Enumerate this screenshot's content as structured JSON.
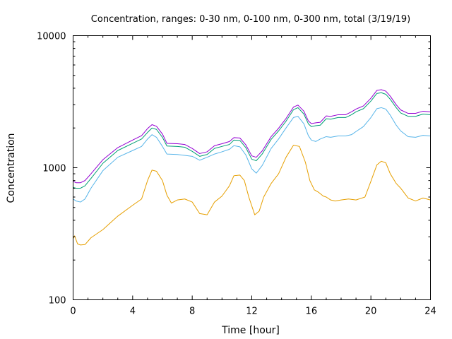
{
  "chart_data": {
    "type": "line",
    "title": "Concentration, ranges: 0-30 nm, 0-100 nm, 0-300 nm, total (3/19/19)",
    "xlabel": "Time [hour]",
    "ylabel": "Concentration",
    "xlim": [
      0,
      24
    ],
    "ylim": [
      100,
      10000
    ],
    "yscale": "log",
    "grid": false,
    "legend": "none",
    "x_ticks": [
      0,
      4,
      8,
      12,
      16,
      20,
      24
    ],
    "x_tick_labels": [
      "0",
      "4",
      "8",
      "12",
      "16",
      "20",
      "24"
    ],
    "y_ticks": [
      100,
      1000,
      10000
    ],
    "y_tick_labels": [
      "100",
      "1000",
      "10000"
    ],
    "series": [
      {
        "color": "#e69f00",
        "points": [
          [
            0,
            290
          ],
          [
            0.1,
            305
          ],
          [
            0.3,
            265
          ],
          [
            0.5,
            260
          ],
          [
            0.8,
            262
          ],
          [
            1.2,
            295
          ],
          [
            2,
            340
          ],
          [
            3,
            430
          ],
          [
            4,
            520
          ],
          [
            4.6,
            580
          ],
          [
            5,
            800
          ],
          [
            5.3,
            960
          ],
          [
            5.6,
            940
          ],
          [
            6,
            800
          ],
          [
            6.3,
            620
          ],
          [
            6.6,
            540
          ],
          [
            7,
            570
          ],
          [
            7.5,
            580
          ],
          [
            8,
            550
          ],
          [
            8.5,
            450
          ],
          [
            9,
            440
          ],
          [
            9.5,
            550
          ],
          [
            10,
            610
          ],
          [
            10.5,
            730
          ],
          [
            10.8,
            870
          ],
          [
            11.2,
            880
          ],
          [
            11.5,
            800
          ],
          [
            11.8,
            600
          ],
          [
            12.2,
            440
          ],
          [
            12.5,
            470
          ],
          [
            12.8,
            600
          ],
          [
            13.3,
            760
          ],
          [
            13.8,
            900
          ],
          [
            14.3,
            1200
          ],
          [
            14.8,
            1480
          ],
          [
            15.2,
            1450
          ],
          [
            15.6,
            1100
          ],
          [
            15.9,
            800
          ],
          [
            16.2,
            680
          ],
          [
            16.5,
            650
          ],
          [
            16.8,
            610
          ],
          [
            17,
            600
          ],
          [
            17.3,
            570
          ],
          [
            17.6,
            560
          ],
          [
            18,
            570
          ],
          [
            18.5,
            580
          ],
          [
            19,
            570
          ],
          [
            19.6,
            600
          ],
          [
            20,
            790
          ],
          [
            20.4,
            1050
          ],
          [
            20.7,
            1120
          ],
          [
            21,
            1090
          ],
          [
            21.3,
            900
          ],
          [
            21.7,
            760
          ],
          [
            22,
            700
          ],
          [
            22.5,
            590
          ],
          [
            23,
            560
          ],
          [
            23.5,
            590
          ],
          [
            24,
            570
          ]
        ]
      },
      {
        "color": "#56b4e9",
        "points": [
          [
            0,
            580
          ],
          [
            0.2,
            560
          ],
          [
            0.5,
            550
          ],
          [
            0.8,
            580
          ],
          [
            1.2,
            700
          ],
          [
            2,
            950
          ],
          [
            3,
            1200
          ],
          [
            4,
            1350
          ],
          [
            4.6,
            1450
          ],
          [
            5,
            1650
          ],
          [
            5.3,
            1780
          ],
          [
            5.6,
            1700
          ],
          [
            6,
            1450
          ],
          [
            6.3,
            1270
          ],
          [
            7,
            1260
          ],
          [
            7.5,
            1240
          ],
          [
            8,
            1220
          ],
          [
            8.5,
            1140
          ],
          [
            9,
            1200
          ],
          [
            9.5,
            1270
          ],
          [
            10,
            1320
          ],
          [
            10.5,
            1380
          ],
          [
            10.8,
            1470
          ],
          [
            11.2,
            1440
          ],
          [
            11.6,
            1250
          ],
          [
            12,
            980
          ],
          [
            12.3,
            910
          ],
          [
            12.7,
            1040
          ],
          [
            13.3,
            1400
          ],
          [
            13.8,
            1650
          ],
          [
            14.3,
            2000
          ],
          [
            14.8,
            2400
          ],
          [
            15.1,
            2450
          ],
          [
            15.5,
            2150
          ],
          [
            15.8,
            1750
          ],
          [
            16,
            1620
          ],
          [
            16.3,
            1580
          ],
          [
            16.6,
            1650
          ],
          [
            17,
            1720
          ],
          [
            17.3,
            1700
          ],
          [
            17.8,
            1740
          ],
          [
            18.3,
            1740
          ],
          [
            18.7,
            1780
          ],
          [
            19,
            1880
          ],
          [
            19.5,
            2050
          ],
          [
            20,
            2400
          ],
          [
            20.4,
            2800
          ],
          [
            20.7,
            2850
          ],
          [
            21,
            2780
          ],
          [
            21.3,
            2500
          ],
          [
            21.7,
            2100
          ],
          [
            22,
            1900
          ],
          [
            22.5,
            1720
          ],
          [
            23,
            1700
          ],
          [
            23.5,
            1760
          ],
          [
            24,
            1740
          ]
        ]
      },
      {
        "color": "#009e73",
        "points": [
          [
            0,
            710
          ],
          [
            0.2,
            700
          ],
          [
            0.5,
            700
          ],
          [
            0.8,
            730
          ],
          [
            1.2,
            830
          ],
          [
            2,
            1080
          ],
          [
            3,
            1350
          ],
          [
            4,
            1530
          ],
          [
            4.6,
            1650
          ],
          [
            5,
            1850
          ],
          [
            5.3,
            2000
          ],
          [
            5.6,
            1950
          ],
          [
            6,
            1700
          ],
          [
            6.3,
            1460
          ],
          [
            7,
            1450
          ],
          [
            7.5,
            1430
          ],
          [
            8,
            1330
          ],
          [
            8.5,
            1220
          ],
          [
            9,
            1260
          ],
          [
            9.5,
            1400
          ],
          [
            10,
            1450
          ],
          [
            10.5,
            1500
          ],
          [
            10.8,
            1620
          ],
          [
            11.2,
            1610
          ],
          [
            11.6,
            1420
          ],
          [
            12,
            1160
          ],
          [
            12.3,
            1130
          ],
          [
            12.7,
            1270
          ],
          [
            13.3,
            1640
          ],
          [
            13.8,
            1900
          ],
          [
            14.3,
            2250
          ],
          [
            14.8,
            2750
          ],
          [
            15.1,
            2850
          ],
          [
            15.5,
            2550
          ],
          [
            15.8,
            2150
          ],
          [
            16,
            2050
          ],
          [
            16.3,
            2080
          ],
          [
            16.6,
            2100
          ],
          [
            17,
            2350
          ],
          [
            17.3,
            2330
          ],
          [
            17.8,
            2400
          ],
          [
            18.3,
            2400
          ],
          [
            18.7,
            2520
          ],
          [
            19,
            2650
          ],
          [
            19.5,
            2800
          ],
          [
            20,
            3200
          ],
          [
            20.4,
            3650
          ],
          [
            20.7,
            3700
          ],
          [
            21,
            3600
          ],
          [
            21.3,
            3300
          ],
          [
            21.7,
            2850
          ],
          [
            22,
            2600
          ],
          [
            22.5,
            2450
          ],
          [
            23,
            2450
          ],
          [
            23.5,
            2550
          ],
          [
            24,
            2520
          ]
        ]
      },
      {
        "color": "#9400d3",
        "points": [
          [
            0,
            790
          ],
          [
            0.2,
            770
          ],
          [
            0.5,
            770
          ],
          [
            0.8,
            800
          ],
          [
            1.2,
            900
          ],
          [
            2,
            1150
          ],
          [
            3,
            1420
          ],
          [
            4,
            1620
          ],
          [
            4.6,
            1750
          ],
          [
            5,
            1980
          ],
          [
            5.3,
            2120
          ],
          [
            5.6,
            2060
          ],
          [
            6,
            1800
          ],
          [
            6.3,
            1530
          ],
          [
            7,
            1520
          ],
          [
            7.5,
            1500
          ],
          [
            8,
            1400
          ],
          [
            8.5,
            1280
          ],
          [
            9,
            1320
          ],
          [
            9.5,
            1470
          ],
          [
            10,
            1520
          ],
          [
            10.5,
            1580
          ],
          [
            10.8,
            1690
          ],
          [
            11.2,
            1680
          ],
          [
            11.6,
            1490
          ],
          [
            12,
            1230
          ],
          [
            12.3,
            1200
          ],
          [
            12.7,
            1340
          ],
          [
            13.3,
            1720
          ],
          [
            13.8,
            1990
          ],
          [
            14.3,
            2360
          ],
          [
            14.8,
            2880
          ],
          [
            15.1,
            2980
          ],
          [
            15.5,
            2680
          ],
          [
            15.8,
            2260
          ],
          [
            16,
            2160
          ],
          [
            16.3,
            2190
          ],
          [
            16.6,
            2210
          ],
          [
            17,
            2470
          ],
          [
            17.3,
            2450
          ],
          [
            17.8,
            2520
          ],
          [
            18.3,
            2520
          ],
          [
            18.7,
            2650
          ],
          [
            19,
            2780
          ],
          [
            19.5,
            2940
          ],
          [
            20,
            3360
          ],
          [
            20.4,
            3850
          ],
          [
            20.7,
            3900
          ],
          [
            21,
            3800
          ],
          [
            21.3,
            3480
          ],
          [
            21.7,
            3000
          ],
          [
            22,
            2740
          ],
          [
            22.5,
            2580
          ],
          [
            23,
            2580
          ],
          [
            23.5,
            2680
          ],
          [
            24,
            2650
          ]
        ]
      }
    ]
  }
}
